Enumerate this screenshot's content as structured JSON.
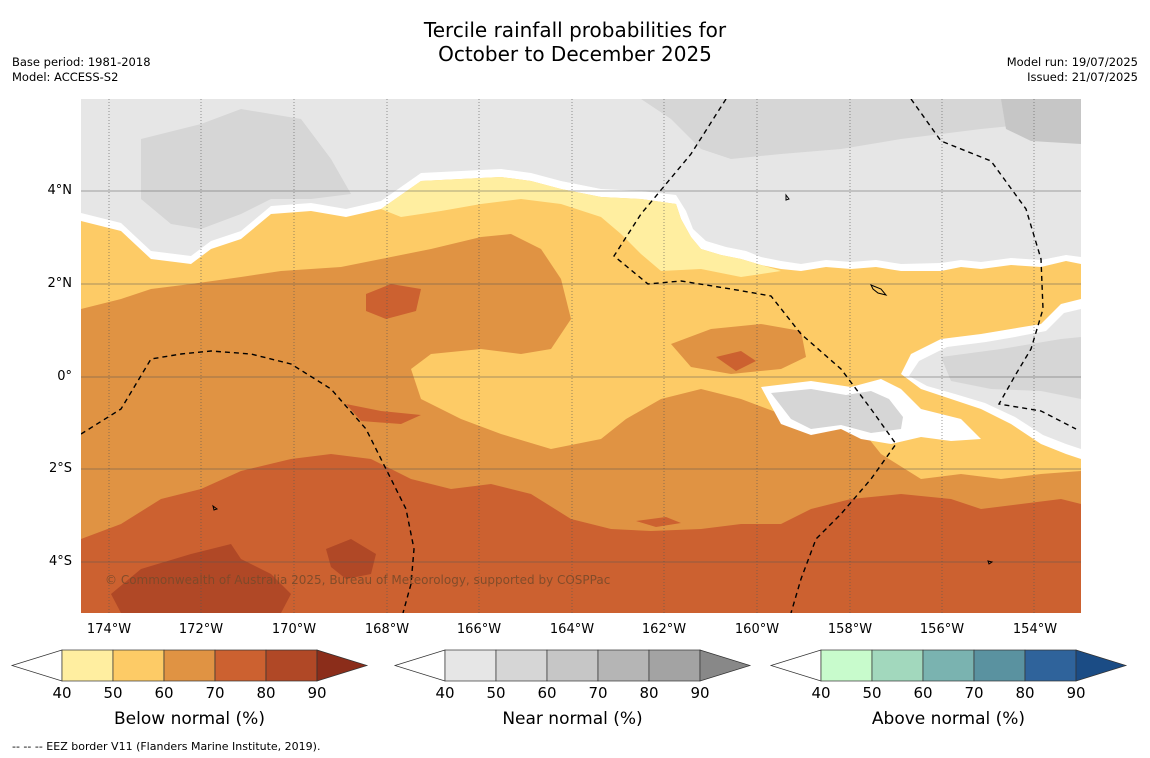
{
  "title_line1": "Tercile rainfall probabilities for",
  "title_line2": "October to December 2025",
  "meta_left": [
    "Base period: 1981-2018",
    "Model: ACCESS-S2"
  ],
  "meta_right": [
    "Model run: 19/07/2025",
    "Issued: 21/07/2025"
  ],
  "copyright": "© Commonwealth of Australia 2025, Bureau of Meteorology, supported by COSPPac",
  "lon_labels": [
    "174°W",
    "172°W",
    "170°W",
    "168°W",
    "166°W",
    "164°W",
    "162°W",
    "160°W",
    "158°W",
    "156°W",
    "154°W"
  ],
  "lat_labels": [
    "4°N",
    "2°N",
    "0°",
    "2°S",
    "4°S"
  ],
  "colorbars": [
    {
      "title": "Below normal (%)",
      "ticks": [
        "40",
        "50",
        "60",
        "70",
        "80",
        "90"
      ],
      "colors": [
        "#ffffff",
        "#ffeea0",
        "#fdcb66",
        "#e09343",
        "#cc6130",
        "#b04826",
        "#8b2d1a"
      ]
    },
    {
      "title": "Near normal (%)",
      "ticks": [
        "40",
        "50",
        "60",
        "70",
        "80",
        "90"
      ],
      "colors": [
        "#ffffff",
        "#e6e6e6",
        "#d6d6d6",
        "#c6c6c6",
        "#b5b5b5",
        "#a3a3a3",
        "#888888"
      ]
    },
    {
      "title": "Above normal (%)",
      "ticks": [
        "40",
        "50",
        "60",
        "70",
        "80",
        "90"
      ],
      "colors": [
        "#ffffff",
        "#c8fbcc",
        "#a2d8bd",
        "#7ab3b0",
        "#5a92a0",
        "#2f639b",
        "#1b4c85"
      ]
    }
  ],
  "footer": "--  --  -- EEZ border V11 (Flanders Marine Institute, 2019)."
}
